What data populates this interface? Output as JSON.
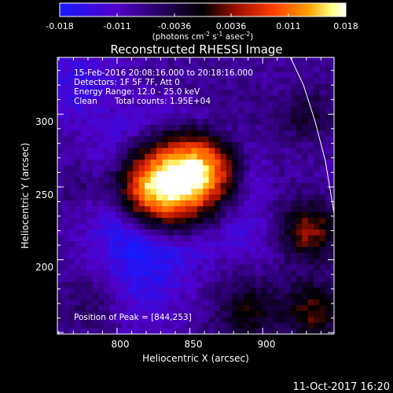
{
  "colorbar": {
    "ticks": [
      "-0.018",
      "-0.011",
      "-0.0036",
      "0.0036",
      "0.011",
      "0.018"
    ],
    "unit_main": "(photons cm",
    "unit_exp1": "-2",
    "unit_mid": " s",
    "unit_exp2": "-1",
    "unit_end": " asec",
    "unit_exp3": "-2",
    "unit_close": ")",
    "colors": [
      "#1a1aff",
      "#5000c8",
      "#000000",
      "#a01000",
      "#ff4000",
      "#ffa000",
      "#ffff80",
      "#ffffff"
    ]
  },
  "title": "Reconstructed RHESSI Image",
  "info": {
    "line1": "15-Feb-2016 20:08:16.000 to 20:18:16.000",
    "line2": "Detectors: 1F 5F 7F, Att 0",
    "line3": "Energy Range: 12.0 - 25.0 keV",
    "line4_a": "Clean",
    "line4_b": "Total counts: 1.95E+04",
    "peak": "Position of Peak = [844,253]"
  },
  "footer_date": "11-Oct-2017 16:20",
  "chart_data": {
    "type": "heatmap",
    "xlabel": "Heliocentric X (arcsec)",
    "ylabel": "Heliocentric Y (arcsec)",
    "xlim": [
      759,
      949
    ],
    "ylim": [
      149,
      339
    ],
    "xticks": [
      800,
      850,
      900
    ],
    "yticks": [
      200,
      250,
      300
    ],
    "vmin": -0.018,
    "vmax": 0.018,
    "peak_position": [
      844,
      253
    ],
    "limb_curve": [
      [
        919,
        339
      ],
      [
        928,
        320
      ],
      [
        936,
        295
      ],
      [
        943,
        268
      ],
      [
        949,
        232
      ]
    ]
  }
}
